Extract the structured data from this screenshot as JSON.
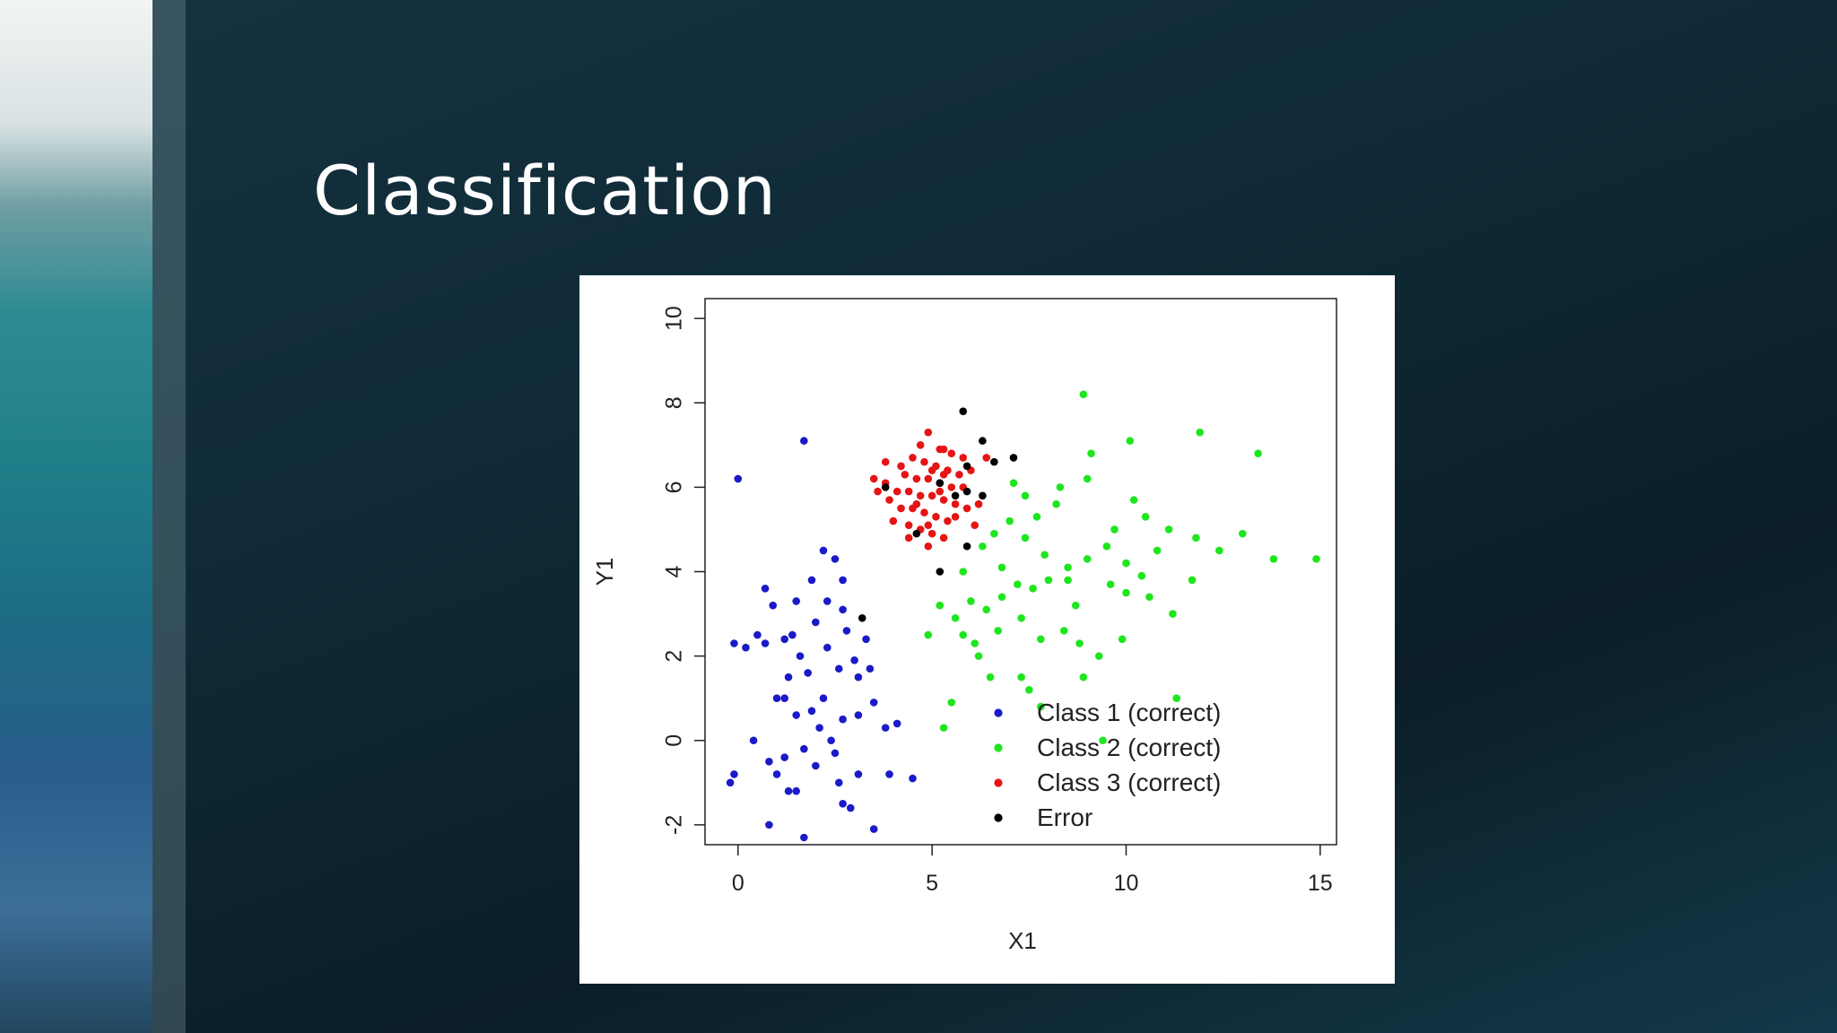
{
  "slide": {
    "title": "Classification"
  },
  "chart_data": {
    "type": "scatter",
    "x_label": "X1",
    "y_label": "Y1",
    "xlim": [
      -0.85,
      15.42
    ],
    "ylim": [
      -2.47,
      10.47
    ],
    "xticks": [
      0,
      5,
      10,
      15
    ],
    "yticks": [
      -2,
      0,
      2,
      4,
      6,
      8,
      10
    ],
    "legend": "lower right",
    "series": [
      {
        "name": "Class 1 (correct)",
        "color": "#1a1ac8",
        "x": [
          0,
          1.7,
          -0.1,
          0.2,
          0.5,
          0.7,
          0.7,
          0.9,
          1.5,
          1.9,
          2.2,
          2.5,
          2.7,
          2.7,
          2.3,
          1.2,
          1.4,
          1.6,
          1.3,
          1.0,
          1.5,
          1.9,
          2.2,
          2.3,
          2.6,
          3.0,
          3.1,
          3.4,
          3.3,
          3.5,
          3.1,
          2.7,
          2.1,
          1.7,
          1.2,
          0.8,
          0.4,
          -0.1,
          -0.2,
          1.0,
          1.3,
          2.0,
          2.5,
          2.6,
          2.7,
          2.9,
          3.1,
          0.8,
          1.7,
          3.5,
          3.9,
          4.5,
          4.1,
          3.8,
          1.8,
          2.0,
          2.8,
          1.5,
          2.4,
          1.2
        ],
        "y": [
          6.2,
          7.1,
          2.3,
          2.2,
          2.5,
          2.3,
          3.6,
          3.2,
          3.3,
          3.8,
          4.5,
          4.3,
          3.8,
          3.1,
          3.3,
          2.4,
          2.5,
          2.0,
          1.5,
          1.0,
          0.6,
          0.7,
          1.0,
          2.2,
          1.7,
          1.9,
          1.5,
          1.7,
          2.4,
          0.9,
          0.6,
          0.5,
          0.3,
          -0.2,
          -0.4,
          -0.5,
          0.0,
          -0.8,
          -1.0,
          -0.8,
          -1.2,
          -0.6,
          -0.3,
          -1.0,
          -1.5,
          -1.6,
          -0.8,
          -2.0,
          -2.3,
          -2.1,
          -0.8,
          -0.9,
          0.4,
          0.3,
          1.6,
          2.8,
          2.6,
          -1.2,
          0.0,
          1.0
        ]
      },
      {
        "name": "Class 2 (correct)",
        "color": "#1ee61e",
        "x": [
          8.9,
          10.1,
          11.9,
          13.4,
          9.1,
          9.0,
          7.1,
          7.4,
          8.3,
          10.2,
          10.5,
          11.1,
          11.8,
          12.4,
          13.0,
          13.8,
          14.9,
          10.8,
          10.0,
          9.5,
          9.0,
          8.5,
          8.0,
          7.6,
          7.2,
          6.8,
          6.4,
          6.0,
          5.6,
          5.2,
          5.8,
          6.1,
          6.7,
          7.3,
          7.8,
          8.4,
          8.8,
          9.3,
          9.9,
          10.6,
          11.2,
          10.4,
          9.6,
          8.7,
          7.9,
          7.4,
          7.0,
          6.6,
          6.3,
          6.8,
          5.8,
          6.5,
          7.3,
          7.5,
          7.8,
          5.3,
          5.5,
          4.9,
          8.9,
          11.3,
          9.4,
          8.5,
          7.7,
          8.2,
          9.7,
          11.7,
          10.0,
          6.2
        ],
        "y": [
          8.2,
          7.1,
          7.3,
          6.8,
          6.8,
          6.2,
          6.1,
          5.8,
          6.0,
          5.7,
          5.3,
          5.0,
          4.8,
          4.5,
          4.9,
          4.3,
          4.3,
          4.5,
          4.2,
          4.6,
          4.3,
          4.1,
          3.8,
          3.6,
          3.7,
          3.4,
          3.1,
          3.3,
          2.9,
          3.2,
          2.5,
          2.3,
          2.6,
          2.9,
          2.4,
          2.6,
          2.3,
          2.0,
          2.4,
          3.4,
          3.0,
          3.9,
          3.7,
          3.2,
          4.4,
          4.8,
          5.2,
          4.9,
          4.6,
          4.1,
          4.0,
          1.5,
          1.5,
          1.2,
          0.8,
          0.3,
          0.9,
          2.5,
          1.5,
          1.0,
          0.0,
          3.8,
          5.3,
          5.6,
          5.0,
          3.8,
          3.5,
          2.0
        ]
      },
      {
        "name": "Class 3 (correct)",
        "color": "#e61414",
        "x": [
          4.9,
          4.7,
          5.2,
          5.5,
          4.5,
          4.8,
          5.1,
          5.4,
          5.7,
          4.3,
          4.6,
          4.9,
          5.2,
          5.5,
          5.8,
          3.5,
          3.8,
          4.1,
          4.4,
          4.7,
          5.0,
          5.3,
          5.6,
          5.9,
          6.2,
          3.9,
          4.2,
          4.5,
          4.8,
          5.1,
          5.4,
          4.0,
          4.4,
          4.7,
          5.0,
          4.9,
          5.3,
          4.4,
          6.0,
          6.4,
          5.8,
          5.3,
          4.2,
          3.8,
          5.0,
          5.3,
          4.6,
          5.6,
          6.1,
          5.2,
          4.9,
          3.6
        ],
        "y": [
          7.3,
          7.0,
          6.9,
          6.8,
          6.7,
          6.6,
          6.5,
          6.4,
          6.3,
          6.3,
          6.2,
          6.2,
          6.1,
          6.0,
          6.0,
          6.2,
          6.1,
          5.9,
          5.9,
          5.8,
          5.8,
          5.7,
          5.6,
          5.5,
          5.6,
          5.7,
          5.5,
          5.5,
          5.4,
          5.3,
          5.2,
          5.2,
          5.1,
          5.0,
          4.9,
          4.6,
          4.8,
          4.8,
          6.4,
          6.7,
          6.7,
          6.9,
          6.5,
          6.6,
          6.4,
          6.3,
          5.6,
          5.3,
          5.1,
          5.9,
          5.1,
          5.9
        ]
      },
      {
        "name": "Error",
        "color": "#000000",
        "x": [
          5.8,
          6.3,
          7.1,
          6.6,
          5.9,
          6.3,
          5.9,
          3.2,
          5.2,
          5.9,
          4.6,
          5.2,
          3.8,
          5.6
        ],
        "y": [
          7.8,
          7.1,
          6.7,
          6.6,
          6.5,
          5.8,
          5.9,
          2.9,
          4.0,
          4.6,
          4.9,
          6.1,
          6.0,
          5.8
        ]
      }
    ]
  }
}
